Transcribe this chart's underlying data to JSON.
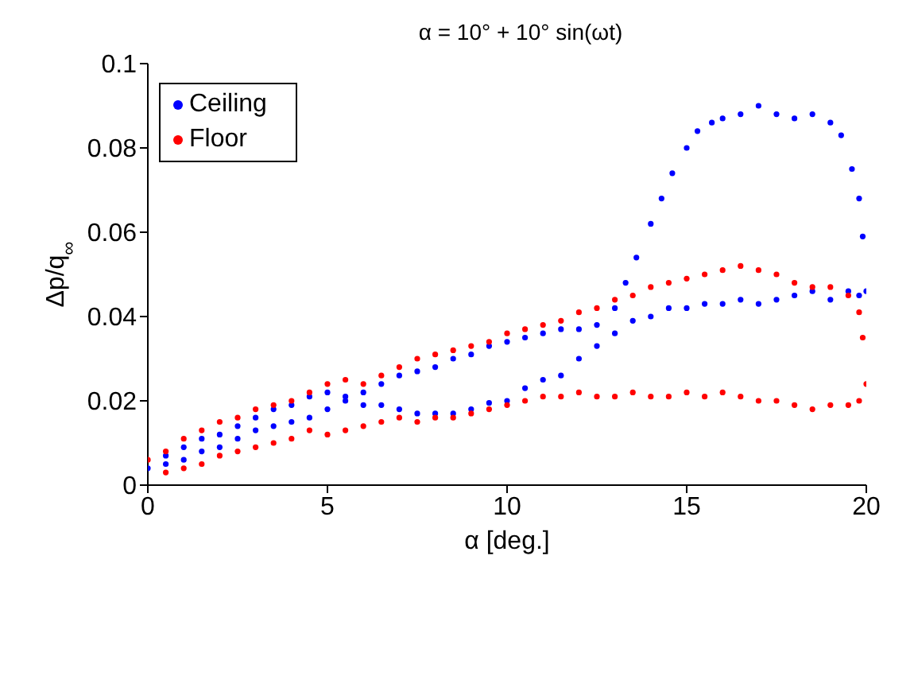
{
  "chart_data": {
    "type": "scatter",
    "title": "α = 10° + 10° sin(ωt)",
    "xlabel": "α [deg.]",
    "ylabel": "Δp/q$_{∞}$",
    "xlim": [
      0,
      20
    ],
    "xticks": [
      0,
      5,
      10,
      15,
      20
    ],
    "ylim": [
      0,
      0.1
    ],
    "yticks": [
      0,
      0.02,
      0.04,
      0.06,
      0.08,
      0.1
    ],
    "grid": false,
    "legend": "top left",
    "marker": "circle",
    "series": [
      {
        "name": "Ceiling",
        "color": "#0000ff",
        "x": [
          0,
          0.5,
          1,
          1.5,
          2,
          2.5,
          3,
          3.5,
          4,
          4.5,
          5,
          5.5,
          6,
          6.5,
          7,
          7.5,
          8,
          8.5,
          9,
          9.5,
          10,
          10.5,
          11,
          11.5,
          12,
          12.5,
          13,
          13.3,
          13.6,
          14,
          14.3,
          14.6,
          15,
          15.3,
          15.7,
          16,
          16.5,
          17,
          17.5,
          18,
          18.5,
          19,
          19.3,
          19.6,
          19.8,
          19.9,
          20,
          19.8,
          19.5,
          19,
          18.5,
          18,
          17.5,
          17,
          16.5,
          16,
          15.5,
          15,
          14.5,
          14,
          13.5,
          13,
          12.5,
          12,
          11.5,
          11,
          10.5,
          10,
          9.5,
          9,
          8.5,
          8,
          7.5,
          7,
          6.5,
          6,
          5.5,
          5,
          4.5,
          4,
          3.5,
          3,
          2.5,
          2,
          1.5,
          1,
          0.5
        ],
        "values": [
          0.004,
          0.007,
          0.009,
          0.011,
          0.012,
          0.014,
          0.016,
          0.018,
          0.019,
          0.021,
          0.022,
          0.021,
          0.022,
          0.024,
          0.026,
          0.027,
          0.028,
          0.03,
          0.031,
          0.033,
          0.034,
          0.035,
          0.036,
          0.037,
          0.037,
          0.038,
          0.042,
          0.048,
          0.054,
          0.062,
          0.068,
          0.074,
          0.08,
          0.084,
          0.086,
          0.087,
          0.088,
          0.09,
          0.088,
          0.087,
          0.088,
          0.086,
          0.083,
          0.075,
          0.068,
          0.059,
          0.046,
          0.045,
          0.046,
          0.044,
          0.046,
          0.045,
          0.044,
          0.043,
          0.044,
          0.043,
          0.043,
          0.042,
          0.042,
          0.04,
          0.039,
          0.036,
          0.033,
          0.03,
          0.026,
          0.025,
          0.023,
          0.02,
          0.0195,
          0.018,
          0.017,
          0.017,
          0.017,
          0.018,
          0.019,
          0.019,
          0.02,
          0.018,
          0.016,
          0.015,
          0.014,
          0.013,
          0.011,
          0.009,
          0.008,
          0.006,
          0.005
        ]
      },
      {
        "name": "Floor",
        "color": "#ff0000",
        "x": [
          0,
          0.5,
          1,
          1.5,
          2,
          2.5,
          3,
          3.5,
          4,
          4.5,
          5,
          5.5,
          6,
          6.5,
          7,
          7.5,
          8,
          8.5,
          9,
          9.5,
          10,
          10.5,
          11,
          11.5,
          12,
          12.5,
          13,
          13.5,
          14,
          14.5,
          15,
          15.5,
          16,
          16.5,
          17,
          17.5,
          18,
          18.5,
          19,
          19.5,
          19.8,
          19.9,
          20,
          19.8,
          19.5,
          19,
          18.5,
          18,
          17.5,
          17,
          16.5,
          16,
          15.5,
          15,
          14.5,
          14,
          13.5,
          13,
          12.5,
          12,
          11.5,
          11,
          10.5,
          10,
          9.5,
          9,
          8.5,
          8,
          7.5,
          7,
          6.5,
          6,
          5.5,
          5,
          4.5,
          4,
          3.5,
          3,
          2.5,
          2,
          1.5,
          1,
          0.5
        ],
        "values": [
          0.006,
          0.008,
          0.011,
          0.013,
          0.015,
          0.016,
          0.018,
          0.019,
          0.02,
          0.022,
          0.024,
          0.025,
          0.024,
          0.026,
          0.028,
          0.03,
          0.031,
          0.032,
          0.033,
          0.034,
          0.036,
          0.037,
          0.038,
          0.039,
          0.041,
          0.042,
          0.044,
          0.045,
          0.047,
          0.048,
          0.049,
          0.05,
          0.051,
          0.052,
          0.051,
          0.05,
          0.048,
          0.047,
          0.047,
          0.045,
          0.041,
          0.035,
          0.024,
          0.02,
          0.019,
          0.019,
          0.018,
          0.019,
          0.02,
          0.02,
          0.021,
          0.022,
          0.021,
          0.022,
          0.021,
          0.021,
          0.022,
          0.021,
          0.021,
          0.022,
          0.021,
          0.021,
          0.02,
          0.019,
          0.018,
          0.017,
          0.016,
          0.016,
          0.015,
          0.016,
          0.015,
          0.014,
          0.013,
          0.012,
          0.013,
          0.011,
          0.01,
          0.009,
          0.008,
          0.007,
          0.005,
          0.004,
          0.003
        ]
      }
    ]
  }
}
